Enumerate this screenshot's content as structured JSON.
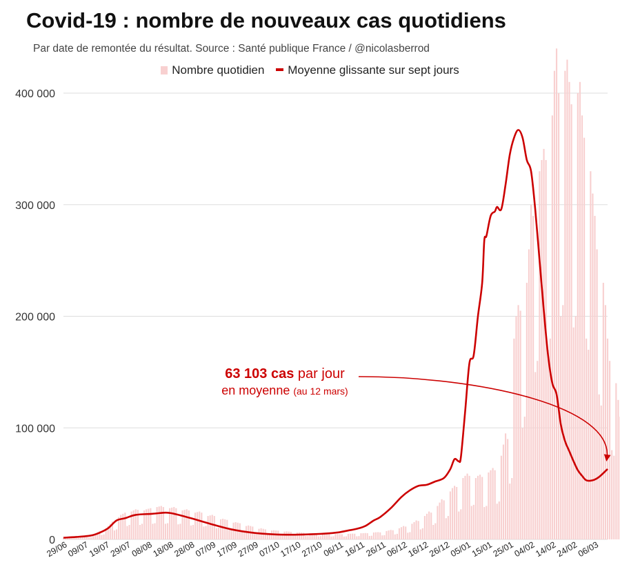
{
  "header": {
    "title": "Covid-19 : nombre de nouveaux cas quotidiens",
    "subtitle": "Par date de remontée du résultat. Source : Santé publique France / @nicolasberrod"
  },
  "annotation": {
    "value": "63 103 cas",
    "rest1": " par jour",
    "line2": "en moyenne",
    "date": "(au 12 mars)"
  },
  "colors": {
    "bars": "#f8d0d0",
    "line": "#cc0000",
    "grid": "#dddddd",
    "arrow": "#cc0000"
  },
  "chart_data": {
    "type": "bar",
    "legend_position": "top",
    "grid": true,
    "ylim": [
      0,
      400000
    ],
    "yticks": [
      0,
      100000,
      200000,
      300000,
      400000
    ],
    "ytick_labels": [
      "0",
      "100 000",
      "200 000",
      "300 000",
      "400 000"
    ],
    "x_range": [
      "2021-06-29",
      "2022-03-12"
    ],
    "xtick_dates": [
      "2021-06-29",
      "2021-07-09",
      "2021-07-19",
      "2021-07-29",
      "2021-08-08",
      "2021-08-18",
      "2021-08-28",
      "2021-09-07",
      "2021-09-17",
      "2021-09-27",
      "2021-10-07",
      "2021-10-17",
      "2021-10-27",
      "2021-11-06",
      "2021-11-16",
      "2021-11-26",
      "2021-12-06",
      "2021-12-16",
      "2021-12-26",
      "2022-01-05",
      "2022-01-15",
      "2022-01-25",
      "2022-02-04",
      "2022-02-14",
      "2022-02-24",
      "2022-03-06"
    ],
    "xtick_labels": [
      "29/06",
      "09/07",
      "19/07",
      "29/07",
      "08/08",
      "18/08",
      "28/08",
      "07/09",
      "17/09",
      "27/09",
      "07/10",
      "17/10",
      "27/10",
      "06/11",
      "16/11",
      "26/11",
      "06/12",
      "16/12",
      "26/12",
      "05/01",
      "15/01",
      "25/01",
      "04/02",
      "14/02",
      "24/02",
      "06/03"
    ],
    "series": [
      {
        "name": "Nombre quotidien",
        "kind": "bar",
        "values": [
          1200,
          2500,
          2400,
          2600,
          2800,
          1300,
          1500,
          1500,
          3200,
          3000,
          3500,
          3800,
          1800,
          2000,
          4500,
          5500,
          6500,
          7500,
          4000,
          4500,
          10000,
          12000,
          14000,
          16000,
          8000,
          9000,
          20000,
          22000,
          23000,
          24000,
          12000,
          13000,
          25000,
          26000,
          27000,
          26500,
          13000,
          14000,
          26000,
          27000,
          27500,
          28000,
          14000,
          14500,
          29000,
          29500,
          30000,
          29000,
          14000,
          14500,
          28000,
          28500,
          29000,
          28000,
          13500,
          14000,
          26000,
          26500,
          27000,
          26000,
          12500,
          13000,
          24000,
          24500,
          25000,
          24000,
          11500,
          12000,
          21000,
          21500,
          22000,
          21000,
          10000,
          10500,
          18000,
          18500,
          18000,
          17500,
          8500,
          9000,
          15000,
          15500,
          15000,
          14500,
          7000,
          7500,
          12000,
          12500,
          12000,
          11500,
          5800,
          6000,
          9500,
          10000,
          9500,
          9000,
          4700,
          5000,
          8000,
          8200,
          8000,
          7800,
          4000,
          4200,
          7000,
          7200,
          7000,
          6800,
          3500,
          3600,
          6200,
          6300,
          6200,
          6000,
          3100,
          3200,
          5500,
          5600,
          5500,
          5400,
          2800,
          3000,
          5000,
          5100,
          5000,
          4900,
          2600,
          2800,
          4800,
          4900,
          4800,
          4700,
          2600,
          2800,
          5000,
          5100,
          5200,
          5100,
          2800,
          3000,
          5500,
          5600,
          5700,
          5600,
          3100,
          3300,
          6200,
          6400,
          6500,
          6300,
          3600,
          3800,
          7500,
          8000,
          8500,
          8200,
          4500,
          5000,
          10000,
          11000,
          12000,
          11500,
          6000,
          6500,
          14000,
          15500,
          17000,
          16500,
          9000,
          10000,
          21000,
          23000,
          25000,
          24000,
          13000,
          14500,
          30000,
          33000,
          36000,
          35000,
          19000,
          21000,
          43000,
          46000,
          48000,
          47000,
          25000,
          27000,
          55000,
          57000,
          59000,
          57000,
          30000,
          31000,
          55000,
          57000,
          58000,
          56000,
          29000,
          30000,
          60000,
          62000,
          64000,
          62000,
          32000,
          34000,
          75000,
          85000,
          95000,
          90000,
          50000,
          55000,
          180000,
          200000,
          210000,
          205000,
          100000,
          110000,
          230000,
          260000,
          300000,
          290000,
          150000,
          160000,
          330000,
          340000,
          350000,
          340000,
          170000,
          180000,
          380000,
          420000,
          440000,
          400000,
          200000,
          210000,
          420000,
          430000,
          410000,
          390000,
          190000,
          200000,
          400000,
          410000,
          380000,
          360000,
          180000,
          170000,
          330000,
          310000,
          290000,
          260000,
          130000,
          120000,
          230000,
          210000,
          180000,
          160000,
          80000,
          75000,
          140000,
          125000,
          110000,
          100000,
          50000,
          48000,
          95000,
          88000,
          80000,
          75000,
          40000,
          38000,
          78000,
          74000,
          70000,
          68000,
          35000,
          33000,
          72000,
          74000,
          76000,
          73000,
          38000,
          40000,
          80000,
          82000,
          78000
        ]
      },
      {
        "name": "Moyenne glissante sur sept jours",
        "kind": "line",
        "points": [
          [
            "2021-06-29",
            1500
          ],
          [
            "2021-07-05",
            2200
          ],
          [
            "2021-07-12",
            3500
          ],
          [
            "2021-07-16",
            6000
          ],
          [
            "2021-07-20",
            10000
          ],
          [
            "2021-07-24",
            17000
          ],
          [
            "2021-07-28",
            19000
          ],
          [
            "2021-08-02",
            22000
          ],
          [
            "2021-08-10",
            23000
          ],
          [
            "2021-08-16",
            24000
          ],
          [
            "2021-08-20",
            23000
          ],
          [
            "2021-08-28",
            19000
          ],
          [
            "2021-09-06",
            14000
          ],
          [
            "2021-09-16",
            9000
          ],
          [
            "2021-09-26",
            6000
          ],
          [
            "2021-10-06",
            4500
          ],
          [
            "2021-10-14",
            4200
          ],
          [
            "2021-10-22",
            4500
          ],
          [
            "2021-10-30",
            5200
          ],
          [
            "2021-11-05",
            6200
          ],
          [
            "2021-11-10",
            8000
          ],
          [
            "2021-11-14",
            9500
          ],
          [
            "2021-11-18",
            12000
          ],
          [
            "2021-11-22",
            17000
          ],
          [
            "2021-11-25",
            20000
          ],
          [
            "2021-11-30",
            28000
          ],
          [
            "2021-12-05",
            38000
          ],
          [
            "2021-12-09",
            44000
          ],
          [
            "2021-12-13",
            48000
          ],
          [
            "2021-12-17",
            49000
          ],
          [
            "2021-12-21",
            52000
          ],
          [
            "2021-12-25",
            55000
          ],
          [
            "2021-12-28",
            63000
          ],
          [
            "2021-12-30",
            72000
          ],
          [
            "2022-01-01",
            70000
          ],
          [
            "2022-01-02",
            74000
          ],
          [
            "2022-01-04",
            115000
          ],
          [
            "2022-01-06",
            158000
          ],
          [
            "2022-01-08",
            165000
          ],
          [
            "2022-01-10",
            200000
          ],
          [
            "2022-01-12",
            230000
          ],
          [
            "2022-01-13",
            268000
          ],
          [
            "2022-01-14",
            272000
          ],
          [
            "2022-01-16",
            290000
          ],
          [
            "2022-01-18",
            294000
          ],
          [
            "2022-01-19",
            298000
          ],
          [
            "2022-01-21",
            296000
          ],
          [
            "2022-01-23",
            318000
          ],
          [
            "2022-01-25",
            345000
          ],
          [
            "2022-01-27",
            360000
          ],
          [
            "2022-01-29",
            367000
          ],
          [
            "2022-01-31",
            360000
          ],
          [
            "2022-02-02",
            340000
          ],
          [
            "2022-02-04",
            330000
          ],
          [
            "2022-02-06",
            295000
          ],
          [
            "2022-02-08",
            250000
          ],
          [
            "2022-02-10",
            205000
          ],
          [
            "2022-02-12",
            165000
          ],
          [
            "2022-02-14",
            140000
          ],
          [
            "2022-02-16",
            130000
          ],
          [
            "2022-02-18",
            103000
          ],
          [
            "2022-02-20",
            88000
          ],
          [
            "2022-02-22",
            79000
          ],
          [
            "2022-02-24",
            70000
          ],
          [
            "2022-02-26",
            62000
          ],
          [
            "2022-02-28",
            57000
          ],
          [
            "2022-03-02",
            53000
          ],
          [
            "2022-03-05",
            53000
          ],
          [
            "2022-03-08",
            56000
          ],
          [
            "2022-03-12",
            63103
          ]
        ]
      }
    ]
  }
}
